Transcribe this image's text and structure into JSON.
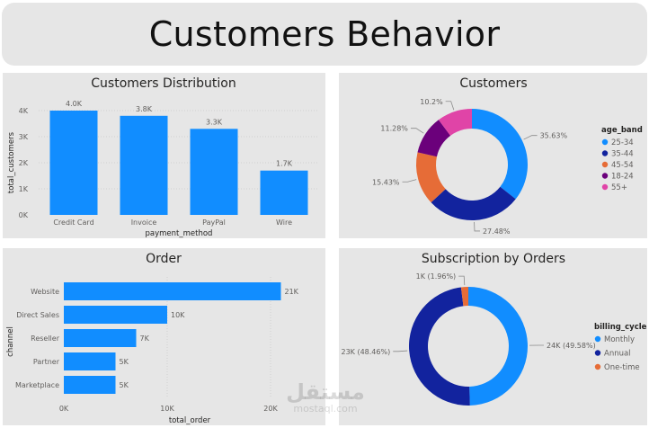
{
  "title": "Customers Behavior",
  "colors": {
    "accent": "#118dff",
    "navy": "#12239e",
    "orange": "#e66c37",
    "purple": "#6b007b",
    "pink": "#e044a7",
    "panel_bg": "#e6e6e6"
  },
  "watermark": {
    "main": "مستقل",
    "sub": "mostaql.com"
  },
  "chart_data": [
    {
      "type": "bar",
      "title": "Customers Distribution",
      "categories": [
        "Credit Card",
        "Invoice",
        "PayPal",
        "Wire"
      ],
      "values": [
        4000,
        3800,
        3300,
        1700
      ],
      "data_labels": [
        "4.0K",
        "3.8K",
        "3.3K",
        "1.7K"
      ],
      "xlabel": "payment_method",
      "ylabel": "total_customers",
      "yticks": [
        "0K",
        "1K",
        "2K",
        "3K",
        "4K"
      ],
      "ylim": [
        0,
        4000
      ],
      "grid": true,
      "color": "#118dff"
    },
    {
      "type": "pie",
      "title": "Customers",
      "legend_title": "age_band",
      "legend_position": "right",
      "slices": [
        {
          "name": "25-34",
          "value": 35.63,
          "label": "35.63%",
          "color": "#118dff"
        },
        {
          "name": "35-44",
          "value": 27.48,
          "label": "27.48%",
          "color": "#12239e"
        },
        {
          "name": "45-54",
          "value": 15.43,
          "label": "15.43%",
          "color": "#e66c37"
        },
        {
          "name": "18-24",
          "value": 11.28,
          "label": "11.28%",
          "color": "#6b007b"
        },
        {
          "name": "55+",
          "value": 10.2,
          "label": "10.2%",
          "color": "#e044a7"
        }
      ]
    },
    {
      "type": "bar",
      "orientation": "horizontal",
      "title": "Order",
      "categories": [
        "Website",
        "Direct Sales",
        "Reseller",
        "Partner",
        "Marketplace"
      ],
      "values": [
        21000,
        10000,
        7000,
        5000,
        5000
      ],
      "data_labels": [
        "21K",
        "10K",
        "7K",
        "5K",
        "5K"
      ],
      "xlabel": "total_order",
      "ylabel": "channel",
      "xticks": [
        "0K",
        "10K",
        "20K"
      ],
      "xlim": [
        0,
        20000
      ],
      "color": "#118dff"
    },
    {
      "type": "pie",
      "title": "Subscription by Orders",
      "legend_title": "billing_cycle",
      "legend_position": "right",
      "slices": [
        {
          "name": "Monthly",
          "value": 49.58,
          "label": "24K (49.58%)",
          "color": "#118dff"
        },
        {
          "name": "Annual",
          "value": 48.46,
          "label": "23K (48.46%)",
          "color": "#12239e"
        },
        {
          "name": "One-time",
          "value": 1.96,
          "label": "1K (1.96%)",
          "color": "#e66c37"
        }
      ]
    }
  ]
}
